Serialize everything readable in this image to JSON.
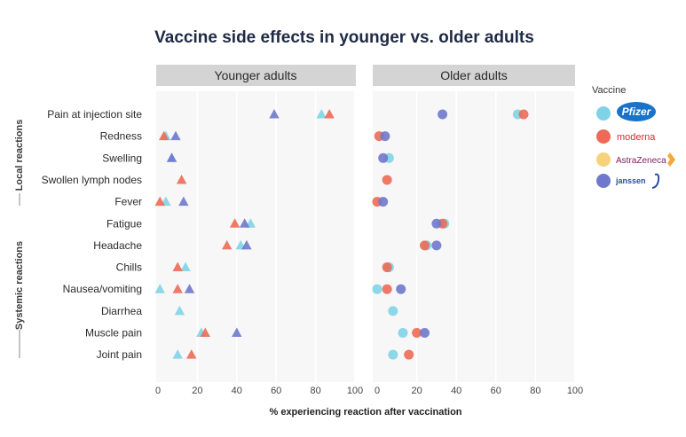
{
  "chart_data": {
    "type": "scatter",
    "title": "Vaccine side effects in younger vs. older adults",
    "xlabel": "% experiencing reaction after vaccination",
    "xlim": [
      0,
      100
    ],
    "xticks": [
      "0",
      "20",
      "40",
      "60",
      "80",
      "100"
    ],
    "grid": true,
    "legend_position": "right",
    "legend_title": "Vaccine",
    "groups": [
      {
        "label": "Local reactions",
        "categories": [
          "Pain at injection site",
          "Redness",
          "Swelling",
          "Swollen lymph nodes"
        ]
      },
      {
        "label": "Systemic reactions",
        "categories": [
          "Fever",
          "Fatigue",
          "Headache",
          "Chills",
          "Nausea/vomiting",
          "Diarrhea",
          "Muscle pain",
          "Joint pain"
        ]
      }
    ],
    "categories": [
      "Pain at injection site",
      "Redness",
      "Swelling",
      "Swollen lymph nodes",
      "Fever",
      "Fatigue",
      "Headache",
      "Chills",
      "Nausea/vomiting",
      "Diarrhea",
      "Muscle pain",
      "Joint pain"
    ],
    "vaccines": [
      {
        "name": "Pfizer",
        "label": "Pfizer",
        "color": "#7fd3e6"
      },
      {
        "name": "Moderna",
        "label": "moderna",
        "color": "#ec6a56"
      },
      {
        "name": "AstraZeneca",
        "label": "AstraZeneca",
        "color": "#f7d27c"
      },
      {
        "name": "Janssen",
        "label": "janssen",
        "color": "#6f78cc"
      }
    ],
    "panels": [
      {
        "title": "Younger adults",
        "marker": "triangle",
        "series": [
          {
            "vaccine": "Pfizer",
            "values": [
              83,
              4,
              7,
              null,
              4,
              47,
              42,
              14,
              1,
              11,
              22,
              10
            ]
          },
          {
            "vaccine": "Moderna",
            "values": [
              87,
              3,
              null,
              12,
              1,
              39,
              35,
              10,
              10,
              null,
              24,
              17
            ]
          },
          {
            "vaccine": "Janssen",
            "values": [
              59,
              9,
              7,
              null,
              13,
              44,
              45,
              null,
              16,
              null,
              40,
              null
            ]
          }
        ]
      },
      {
        "title": "Older adults",
        "marker": "circle",
        "series": [
          {
            "vaccine": "Pfizer",
            "values": [
              71,
              null,
              6,
              null,
              null,
              34,
              25,
              6,
              0,
              8,
              13,
              8
            ]
          },
          {
            "vaccine": "Moderna",
            "values": [
              74,
              1,
              null,
              5,
              0,
              33,
              24,
              5,
              5,
              null,
              20,
              16
            ]
          },
          {
            "vaccine": "Janssen",
            "values": [
              33,
              4,
              3,
              null,
              3,
              30,
              30,
              null,
              12,
              null,
              24,
              null
            ]
          }
        ]
      }
    ]
  }
}
